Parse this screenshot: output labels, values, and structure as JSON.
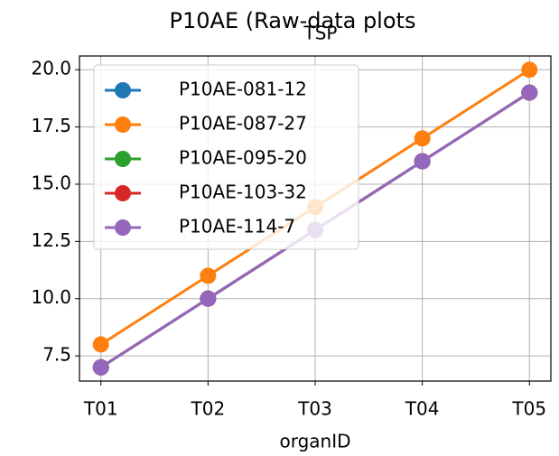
{
  "chart_data": {
    "type": "line",
    "title": "P10AE (Raw-data plots",
    "subtitle": "TSP",
    "x_label": "organID",
    "categories": [
      "T01",
      "T02",
      "T03",
      "T04",
      "T05"
    ],
    "series": [
      {
        "name": "P10AE-081-12",
        "color": "#1f77b4",
        "values": [
          7,
          10,
          13,
          16,
          19
        ]
      },
      {
        "name": "P10AE-087-27",
        "color": "#ff7f0e",
        "values": [
          8,
          11,
          14,
          17,
          20
        ]
      },
      {
        "name": "P10AE-095-20",
        "color": "#2ca02c",
        "values": [
          7,
          10,
          13,
          16,
          19
        ]
      },
      {
        "name": "P10AE-103-32",
        "color": "#d62728",
        "values": [
          7,
          10,
          13,
          16,
          19
        ]
      },
      {
        "name": "P10AE-114-7",
        "color": "#9467bd",
        "values": [
          7,
          10,
          13,
          16,
          19
        ]
      }
    ],
    "ylim": [
      6.4,
      20.6
    ],
    "yticks": [
      7.5,
      {
        "value": 10,
        "label": "10.0"
      },
      12.5,
      {
        "value": 15,
        "label": "15.0"
      },
      17.5,
      {
        "value": 20,
        "label": "20.0"
      }
    ],
    "grid": true,
    "legend": "upper left"
  }
}
